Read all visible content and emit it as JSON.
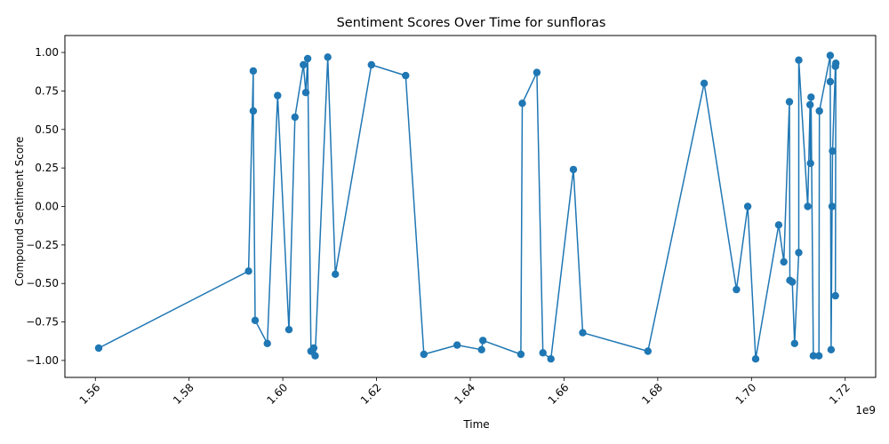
{
  "chart_data": {
    "type": "line",
    "title": "Sentiment Scores Over Time for sunfloras",
    "xlabel": "Time",
    "ylabel": "Compound Sentiment Score",
    "x_offset_label": "1e9",
    "xlim": [
      1.5535,
      1.7265
    ],
    "ylim": [
      -1.11,
      1.11
    ],
    "x_ticks": [
      1.56,
      1.58,
      1.6,
      1.62,
      1.64,
      1.66,
      1.68,
      1.7,
      1.72
    ],
    "x_tick_labels": [
      "1.56",
      "1.58",
      "1.60",
      "1.62",
      "1.64",
      "1.66",
      "1.68",
      "1.70",
      "1.72"
    ],
    "y_ticks": [
      -1.0,
      -0.75,
      -0.5,
      -0.25,
      0.0,
      0.25,
      0.5,
      0.75,
      1.0
    ],
    "y_tick_labels": [
      "−1.00",
      "−0.75",
      "−0.50",
      "−0.25",
      "0.00",
      "0.25",
      "0.50",
      "0.75",
      "1.00"
    ],
    "grid": false,
    "color": "#1f77b4",
    "series": [
      {
        "name": "",
        "points": [
          [
            1.5607,
            -0.92
          ],
          [
            1.5927,
            -0.42
          ],
          [
            1.5937,
            0.88
          ],
          [
            1.5937,
            0.62
          ],
          [
            1.5941,
            -0.74
          ],
          [
            1.5967,
            -0.89
          ],
          [
            1.5989,
            0.72
          ],
          [
            1.6013,
            -0.8
          ],
          [
            1.6026,
            0.58
          ],
          [
            1.6044,
            0.92
          ],
          [
            1.6049,
            0.74
          ],
          [
            1.6053,
            0.96
          ],
          [
            1.606,
            -0.94
          ],
          [
            1.6066,
            -0.92
          ],
          [
            1.6069,
            -0.97
          ],
          [
            1.6096,
            0.97
          ],
          [
            1.6112,
            -0.44
          ],
          [
            1.6189,
            0.92
          ],
          [
            1.6262,
            0.85
          ],
          [
            1.6301,
            -0.96
          ],
          [
            1.6372,
            -0.9
          ],
          [
            1.6424,
            -0.93
          ],
          [
            1.6427,
            -0.87
          ],
          [
            1.6508,
            -0.96
          ],
          [
            1.6511,
            0.67
          ],
          [
            1.6542,
            0.87
          ],
          [
            1.6555,
            -0.95
          ],
          [
            1.6572,
            -0.99
          ],
          [
            1.662,
            0.24
          ],
          [
            1.664,
            -0.82
          ],
          [
            1.6779,
            -0.94
          ],
          [
            1.6899,
            0.8
          ],
          [
            1.6968,
            -0.54
          ],
          [
            1.6992,
            0.0
          ],
          [
            1.7009,
            -0.99
          ],
          [
            1.7058,
            -0.12
          ],
          [
            1.7069,
            -0.36
          ],
          [
            1.7081,
            0.68
          ],
          [
            1.7082,
            -0.48
          ],
          [
            1.7087,
            -0.49
          ],
          [
            1.7092,
            -0.89
          ],
          [
            1.7101,
            -0.3
          ],
          [
            1.7101,
            0.95
          ],
          [
            1.712,
            0.0
          ],
          [
            1.7125,
            0.66
          ],
          [
            1.7126,
            0.28
          ],
          [
            1.7127,
            0.71
          ],
          [
            1.7132,
            -0.97
          ],
          [
            1.7144,
            -0.97
          ],
          [
            1.7145,
            0.62
          ],
          [
            1.7168,
            0.98
          ],
          [
            1.7168,
            0.81
          ],
          [
            1.717,
            -0.93
          ],
          [
            1.7172,
            0.0
          ],
          [
            1.7173,
            0.36
          ],
          [
            1.7179,
            0.91
          ],
          [
            1.718,
            0.93
          ],
          [
            1.7179,
            -0.58
          ]
        ]
      }
    ]
  }
}
